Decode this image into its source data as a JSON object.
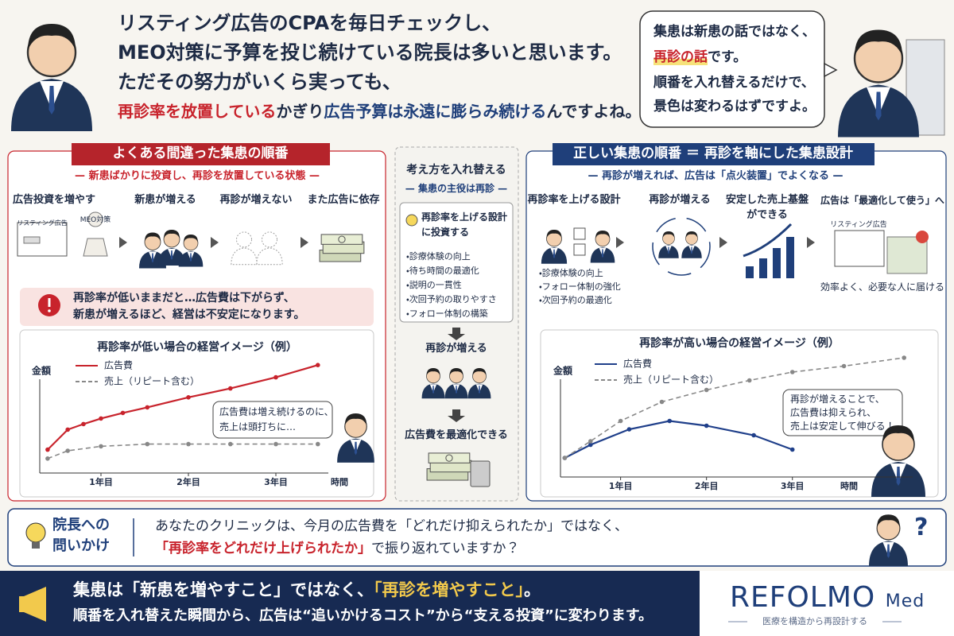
{
  "header": {
    "lines": [
      "リスティング広告のCPAを毎日チェックし、",
      "MEO対策に予算を投じ続けている院長は多いと思います。",
      "ただその努力がいくら実っても、"
    ],
    "emphasis_line": [
      "再診率を放置している",
      "かぎり",
      "広告予算は永遠に膨らみ続ける",
      "んですよね。"
    ]
  },
  "speech": {
    "line1": "集患は新患の話ではなく、",
    "line2": [
      "再診の話",
      "です。"
    ],
    "line3": "順番を入れ替えるだけで、",
    "line4": "景色は変わるはずですよ。"
  },
  "wrong_order": {
    "title": "よくある間違った集患の順番",
    "subtitle": "新患ばかりに投資し、再診を放置している状態",
    "steps": [
      "広告投資を増やす",
      "新患が増える",
      "再診が増えない",
      "また広告に依存"
    ],
    "icon_labels": [
      "リスティング広告",
      "MEO対策"
    ],
    "warning": [
      "再診率が低いままだと…広告費は下がらず、",
      "新患が増えるほど、経営は不安定になります。"
    ],
    "comment": [
      "広告費は増え続けるのに、",
      "売上は頭打ちに…"
    ]
  },
  "switch": {
    "title": "考え方を入れ替える",
    "subtitle": "集患の主役は再診",
    "box_title": [
      "再診率を上げる設計",
      "に投資する"
    ],
    "items": [
      "・診療体験の向上",
      "・待ち時間の最適化",
      "・説明の一貫性",
      "・次回予約の取りやすさ",
      "・フォロー体制の構築"
    ],
    "result1": "再診が増える",
    "result2": "広告費を最適化できる"
  },
  "right_order": {
    "title": "正しい集患の順番 ＝ 再診を軸にした集患設計",
    "subtitle": "再診が増えれば、広告は「点火装置」でよくなる",
    "steps": [
      "再診率を上げる設計",
      "再診が増える",
      [
        "安定した売上基盤",
        "ができる"
      ],
      "広告は「最適化して使う」へ"
    ],
    "items": [
      "・診療体験の向上",
      "・フォロー体制の強化",
      "・次回予約の最適化"
    ],
    "icon_label": "リスティング広告",
    "caption": "効率よく、必要な人に届ける",
    "comment": [
      "再診が増えることで、",
      "広告費は抑えられ、",
      "売上は安定して伸びる！"
    ]
  },
  "question": {
    "label": [
      "院長への",
      "問いかけ"
    ],
    "line1": "あなたのクリニックは、今月の広告費を「どれだけ抑えられたか」ではなく、",
    "line2": [
      "「再診率をどれだけ上げられたか」",
      "で振り返れていますか？"
    ],
    "mark": "?"
  },
  "footer": {
    "line1": [
      "集患は「新患を増やすこと」ではなく、",
      "「再診を増やすこと」",
      "。"
    ],
    "line2": "順番を入れ替えた瞬間から、広告は“追いかけるコスト”から“支える投資”に変わります。",
    "logo": "REFOLMO",
    "logo_suffix": "Med",
    "tagline": "医療を構造から再設計する"
  },
  "chart_data": [
    {
      "type": "line",
      "title": "再診率が低い場合の経営イメージ（例）",
      "y_label": "金額",
      "x_label": "時間",
      "xlim": [
        0.3,
        3.6
      ],
      "ylim": [
        0,
        10
      ],
      "xticks": [
        {
          "value": 1,
          "label": "1年目"
        },
        {
          "value": 2,
          "label": "2年目"
        },
        {
          "value": 3,
          "label": "3年目"
        }
      ],
      "series": [
        {
          "name": "広告費",
          "color": "#c8232c",
          "dashed": false,
          "x": [
            0.39,
            0.62,
            0.8,
            1,
            1.25,
            1.53,
            2,
            2.48,
            3,
            3.48
          ],
          "values": [
            2.1,
            3.9,
            4.4,
            4.9,
            5.4,
            5.9,
            6.8,
            7.6,
            8.6,
            9.7
          ]
        },
        {
          "name": "売上（リピート含む）",
          "color": "#888888",
          "dashed": true,
          "x": [
            0.39,
            0.62,
            1,
            1.53,
            2,
            2.48,
            3,
            3.48
          ],
          "values": [
            1.3,
            2.0,
            2.4,
            2.6,
            2.6,
            2.6,
            2.6,
            2.6
          ]
        }
      ]
    },
    {
      "type": "line",
      "title": "再診率が高い場合の経営イメージ（例）",
      "y_label": "金額",
      "x_label": "時間",
      "xlim": [
        0.3,
        4.4
      ],
      "ylim": [
        0,
        11
      ],
      "xticks": [
        {
          "value": 1,
          "label": "1年目"
        },
        {
          "value": 2,
          "label": "2年目"
        },
        {
          "value": 3,
          "label": "3年目"
        }
      ],
      "series": [
        {
          "name": "広告費",
          "color": "#1f3f8a",
          "dashed": false,
          "x": [
            0.35,
            0.65,
            1.1,
            1.57,
            2,
            2.55,
            3
          ],
          "values": [
            1.6,
            2.7,
            4.0,
            4.7,
            4.3,
            3.5,
            2.3
          ]
        },
        {
          "name": "売上（リピート含む）",
          "color": "#888888",
          "dashed": true,
          "x": [
            0.35,
            0.65,
            1,
            1.48,
            2,
            2.5,
            3,
            3.6,
            4.3
          ],
          "values": [
            1.6,
            3.0,
            4.7,
            6.3,
            7.3,
            8.1,
            8.8,
            9.3,
            10
          ]
        }
      ]
    }
  ]
}
